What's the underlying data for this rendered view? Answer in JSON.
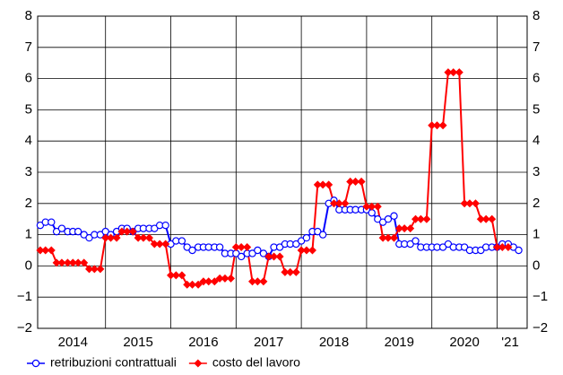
{
  "chart_data": {
    "type": "line",
    "x": [
      2014.0,
      2014.08,
      2014.17,
      2014.25,
      2014.33,
      2014.42,
      2014.5,
      2014.58,
      2014.67,
      2014.75,
      2014.83,
      2014.92,
      2015.0,
      2015.08,
      2015.17,
      2015.25,
      2015.33,
      2015.42,
      2015.5,
      2015.58,
      2015.67,
      2015.75,
      2015.83,
      2015.92,
      2016.0,
      2016.08,
      2016.17,
      2016.25,
      2016.33,
      2016.42,
      2016.5,
      2016.58,
      2016.67,
      2016.75,
      2016.83,
      2016.92,
      2017.0,
      2017.08,
      2017.17,
      2017.25,
      2017.33,
      2017.42,
      2017.5,
      2017.58,
      2017.67,
      2017.75,
      2017.83,
      2017.92,
      2018.0,
      2018.08,
      2018.17,
      2018.25,
      2018.33,
      2018.42,
      2018.5,
      2018.58,
      2018.67,
      2018.75,
      2018.83,
      2018.92,
      2019.0,
      2019.08,
      2019.17,
      2019.25,
      2019.33,
      2019.42,
      2019.5,
      2019.58,
      2019.67,
      2019.75,
      2019.83,
      2019.92,
      2020.0,
      2020.08,
      2020.17,
      2020.25,
      2020.33,
      2020.42,
      2020.5,
      2020.58,
      2020.67,
      2020.75,
      2020.83,
      2020.92,
      2021.0,
      2021.08,
      2021.17,
      2021.25,
      2021.33
    ],
    "series": [
      {
        "name": "retribuzioni contrattuali",
        "color": "#0000ff",
        "marker": "circle",
        "values": [
          1.3,
          1.4,
          1.4,
          1.1,
          1.2,
          1.1,
          1.1,
          1.1,
          1.0,
          0.9,
          1.0,
          1.0,
          1.1,
          1.0,
          1.1,
          1.2,
          1.2,
          1.1,
          1.2,
          1.2,
          1.2,
          1.2,
          1.3,
          1.3,
          0.7,
          0.8,
          0.8,
          0.6,
          0.5,
          0.6,
          0.6,
          0.6,
          0.6,
          0.6,
          0.4,
          0.4,
          0.4,
          0.3,
          0.4,
          0.4,
          0.5,
          0.4,
          0.3,
          0.6,
          0.6,
          0.7,
          0.7,
          0.7,
          0.8,
          0.9,
          1.1,
          1.1,
          1.0,
          2.0,
          2.1,
          1.8,
          1.8,
          1.8,
          1.8,
          1.8,
          1.8,
          1.7,
          1.5,
          1.4,
          1.5,
          1.6,
          0.7,
          0.7,
          0.7,
          0.8,
          0.6,
          0.6,
          0.6,
          0.6,
          0.6,
          0.7,
          0.6,
          0.6,
          0.6,
          0.5,
          0.5,
          0.5,
          0.6,
          0.6,
          0.6,
          0.7,
          0.7,
          0.6,
          0.5
        ]
      },
      {
        "name": "costo del lavoro",
        "color": "#ff0000",
        "marker": "diamond",
        "values": [
          0.5,
          0.5,
          0.5,
          0.1,
          0.1,
          0.1,
          0.1,
          0.1,
          0.1,
          -0.1,
          -0.1,
          -0.1,
          0.9,
          0.9,
          0.9,
          1.1,
          1.1,
          1.1,
          0.9,
          0.9,
          0.9,
          0.7,
          0.7,
          0.7,
          -0.3,
          -0.3,
          -0.3,
          -0.6,
          -0.6,
          -0.6,
          -0.5,
          -0.5,
          -0.5,
          -0.4,
          -0.4,
          -0.4,
          0.6,
          0.6,
          0.6,
          -0.5,
          -0.5,
          -0.5,
          0.3,
          0.3,
          0.3,
          -0.2,
          -0.2,
          -0.2,
          0.5,
          0.5,
          0.5,
          2.6,
          2.6,
          2.6,
          2.0,
          2.0,
          2.0,
          2.7,
          2.7,
          2.7,
          1.9,
          1.9,
          1.9,
          0.9,
          0.9,
          0.9,
          1.2,
          1.2,
          1.2,
          1.5,
          1.5,
          1.5,
          4.5,
          4.5,
          4.5,
          6.2,
          6.2,
          6.2,
          2.0,
          2.0,
          2.0,
          1.5,
          1.5,
          1.5,
          0.6,
          0.6,
          0.6,
          null,
          null
        ]
      }
    ],
    "xlim": [
      2013.96,
      2021.46
    ],
    "xticks": [
      2015,
      2016,
      2017,
      2018,
      2019,
      2020,
      2021
    ],
    "xtick_labels": [
      {
        "value": 2014.5,
        "label": "2014"
      },
      {
        "value": 2015.5,
        "label": "2015"
      },
      {
        "value": 2016.5,
        "label": "2016"
      },
      {
        "value": 2017.5,
        "label": "2017"
      },
      {
        "value": 2018.5,
        "label": "2018"
      },
      {
        "value": 2019.5,
        "label": "2019"
      },
      {
        "value": 2020.5,
        "label": "2020"
      },
      {
        "value": 2021.2,
        "label": "'21"
      }
    ],
    "ylim": [
      -2,
      8
    ],
    "yticks": [
      {
        "value": -2,
        "label": "−2"
      },
      {
        "value": -1,
        "label": "−1"
      },
      0,
      1,
      2,
      3,
      4,
      5,
      6,
      7,
      8
    ],
    "y2lim": [
      -2,
      8
    ],
    "y2ticks": [
      {
        "value": -2,
        "label": "−2"
      },
      {
        "value": -1,
        "label": "−1"
      },
      0,
      1,
      2,
      3,
      4,
      5,
      6,
      7,
      8
    ],
    "grid": true
  }
}
